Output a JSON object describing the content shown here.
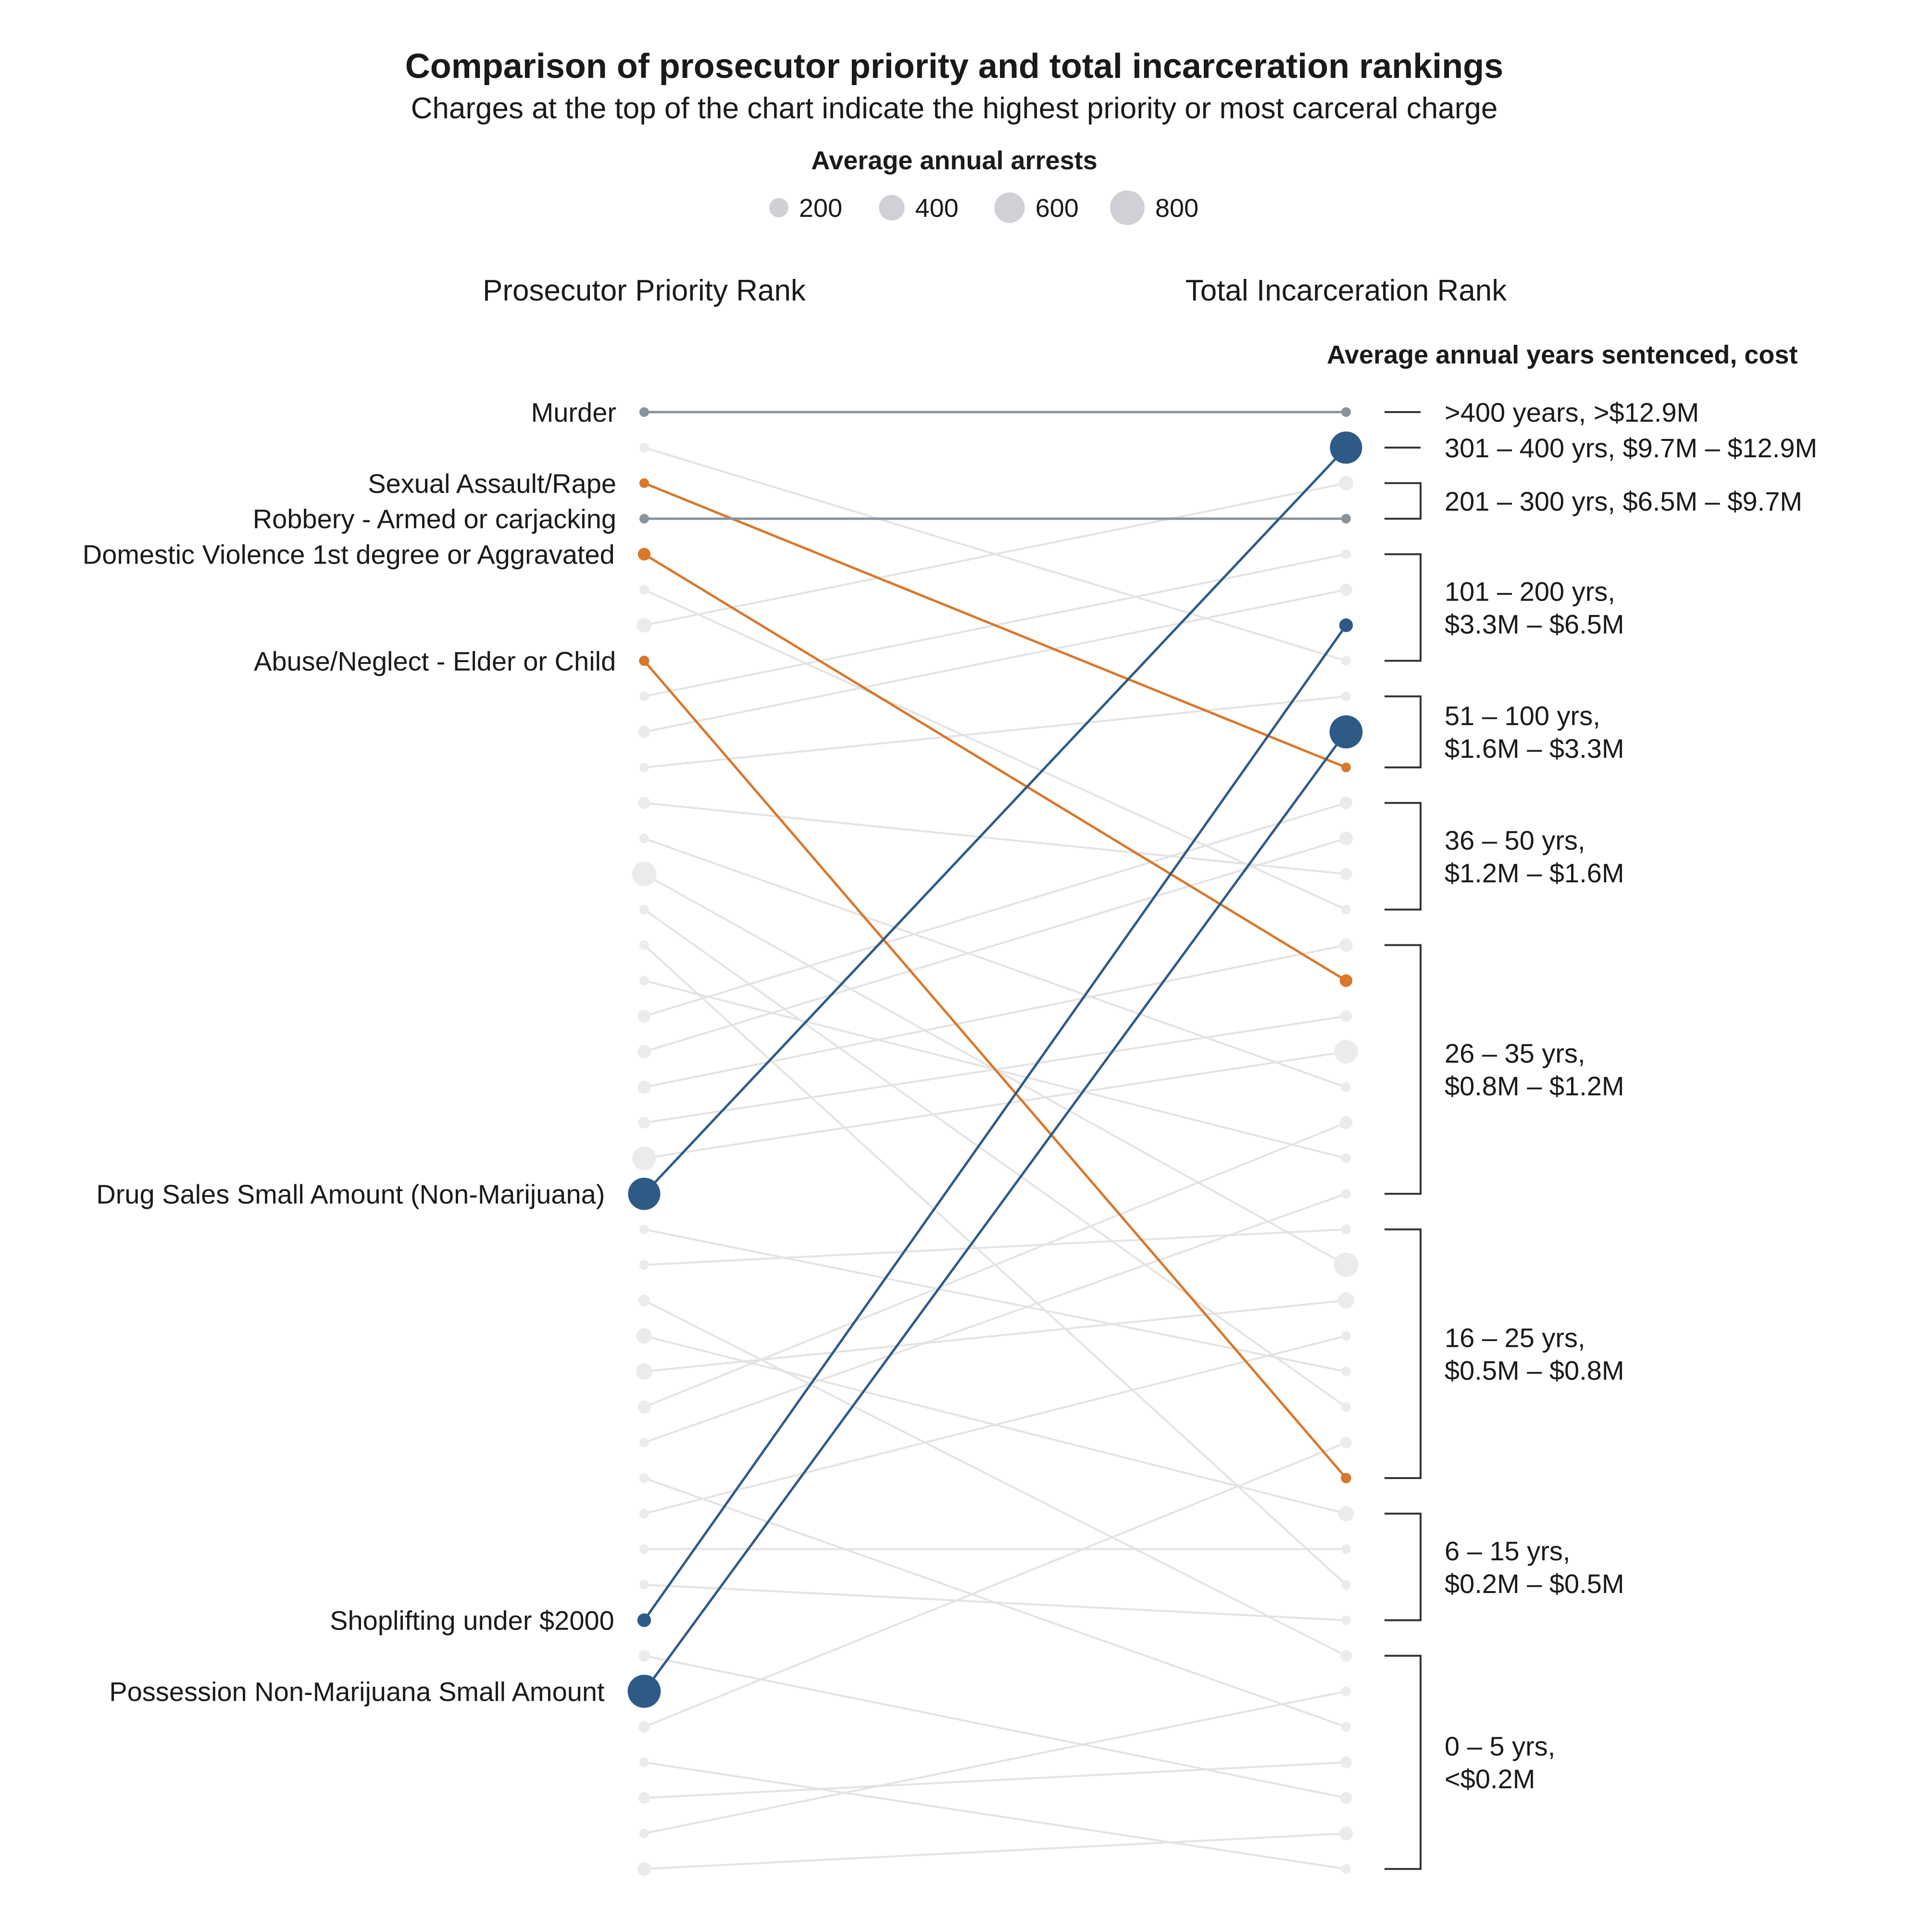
{
  "chart_data": {
    "type": "slope",
    "title": "Comparison of prosecutor priority and total incarceration rankings",
    "subtitle": "Charges at the top of the chart indicate the highest priority or most carceral charge",
    "legend": {
      "title": "Average annual arrests",
      "sizes": [
        {
          "label": "200",
          "value": 200
        },
        {
          "label": "400",
          "value": 400
        },
        {
          "label": "600",
          "value": 600
        },
        {
          "label": "800",
          "value": 800
        }
      ]
    },
    "left_axis_label": "Prosecutor Priority Rank",
    "right_axis_label": "Total Incarceration Rank",
    "bracket_title": "Average annual years sentenced, cost",
    "total_ranks": 42,
    "colors": {
      "highlight_gray": "#8a939c",
      "highlight_orange": "#d9772a",
      "highlight_blue": "#2e5b86",
      "background_line": "#e3e3e3",
      "background_dot": "#ebebeb",
      "bracket": "#333333"
    },
    "highlighted": [
      {
        "name": "Murder",
        "priority_rank": 1,
        "incarceration_rank": 1,
        "arrests": 60,
        "group": "gray"
      },
      {
        "name": "Sexual Assault/Rape",
        "priority_rank": 3,
        "incarceration_rank": 11,
        "arrests": 25,
        "group": "orange"
      },
      {
        "name": "Robbery - Armed or carjacking",
        "priority_rank": 4,
        "incarceration_rank": 4,
        "arrests": 60,
        "group": "gray"
      },
      {
        "name": "Domestic Violence 1st degree or Aggravated",
        "priority_rank": 5,
        "incarceration_rank": 17,
        "arrests": 120,
        "group": "orange"
      },
      {
        "name": "Abuse/Neglect - Elder or Child",
        "priority_rank": 8,
        "incarceration_rank": 31,
        "arrests": 80,
        "group": "orange"
      },
      {
        "name": "Drug Sales Small Amount (Non-Marijuana)",
        "priority_rank": 23,
        "incarceration_rank": 2,
        "arrests": 780,
        "group": "blue"
      },
      {
        "name": "Shoplifting under $2000",
        "priority_rank": 35,
        "incarceration_rank": 7,
        "arrests": 140,
        "group": "blue"
      },
      {
        "name": "Possession Non-Marijuana Small Amount",
        "priority_rank": 37,
        "incarceration_rank": 10,
        "arrests": 820,
        "group": "blue"
      }
    ],
    "background_charges": [
      {
        "priority_rank": 2,
        "incarceration_rank": 8,
        "arrests": 30
      },
      {
        "priority_rank": 6,
        "incarceration_rank": 15,
        "arrests": 30
      },
      {
        "priority_rank": 7,
        "incarceration_rank": 3,
        "arrests": 160
      },
      {
        "priority_rank": 9,
        "incarceration_rank": 5,
        "arrests": 50
      },
      {
        "priority_rank": 10,
        "incarceration_rank": 6,
        "arrests": 110
      },
      {
        "priority_rank": 11,
        "incarceration_rank": 9,
        "arrests": 30
      },
      {
        "priority_rank": 12,
        "incarceration_rank": 14,
        "arrests": 110
      },
      {
        "priority_rank": 13,
        "incarceration_rank": 20,
        "arrests": 30
      },
      {
        "priority_rank": 14,
        "incarceration_rank": 25,
        "arrests": 450
      },
      {
        "priority_rank": 15,
        "incarceration_rank": 29,
        "arrests": 60
      },
      {
        "priority_rank": 16,
        "incarceration_rank": 34,
        "arrests": 30
      },
      {
        "priority_rank": 17,
        "incarceration_rank": 22,
        "arrests": 40
      },
      {
        "priority_rank": 18,
        "incarceration_rank": 12,
        "arrests": 120
      },
      {
        "priority_rank": 19,
        "incarceration_rank": 13,
        "arrests": 140
      },
      {
        "priority_rank": 20,
        "incarceration_rank": 16,
        "arrests": 130
      },
      {
        "priority_rank": 21,
        "incarceration_rank": 18,
        "arrests": 100
      },
      {
        "priority_rank": 22,
        "incarceration_rank": 19,
        "arrests": 420
      },
      {
        "priority_rank": 24,
        "incarceration_rank": 28,
        "arrests": 30
      },
      {
        "priority_rank": 25,
        "incarceration_rank": 24,
        "arrests": 30
      },
      {
        "priority_rank": 26,
        "incarceration_rank": 36,
        "arrests": 100
      },
      {
        "priority_rank": 27,
        "incarceration_rank": 32,
        "arrests": 180
      },
      {
        "priority_rank": 28,
        "incarceration_rank": 26,
        "arrests": 200
      },
      {
        "priority_rank": 29,
        "incarceration_rank": 21,
        "arrests": 130
      },
      {
        "priority_rank": 30,
        "incarceration_rank": 23,
        "arrests": 40
      },
      {
        "priority_rank": 31,
        "incarceration_rank": 38,
        "arrests": 30
      },
      {
        "priority_rank": 32,
        "incarceration_rank": 27,
        "arrests": 30
      },
      {
        "priority_rank": 33,
        "incarceration_rank": 33,
        "arrests": 40
      },
      {
        "priority_rank": 34,
        "incarceration_rank": 35,
        "arrests": 30
      },
      {
        "priority_rank": 36,
        "incarceration_rank": 40,
        "arrests": 100
      },
      {
        "priority_rank": 38,
        "incarceration_rank": 30,
        "arrests": 100
      },
      {
        "priority_rank": 39,
        "incarceration_rank": 42,
        "arrests": 30
      },
      {
        "priority_rank": 40,
        "incarceration_rank": 39,
        "arrests": 100
      },
      {
        "priority_rank": 41,
        "incarceration_rank": 37,
        "arrests": 40
      },
      {
        "priority_rank": 42,
        "incarceration_rank": 41,
        "arrests": 140
      }
    ],
    "brackets": [
      {
        "lines": [
          ">400 years, >$12.9M"
        ],
        "from_rank": 1,
        "to_rank": 1
      },
      {
        "lines": [
          "301 – 400 yrs, $9.7M – $12.9M"
        ],
        "from_rank": 2,
        "to_rank": 2
      },
      {
        "lines": [
          "201 – 300 yrs, $6.5M – $9.7M"
        ],
        "from_rank": 3,
        "to_rank": 4
      },
      {
        "lines": [
          "101 – 200 yrs,",
          "$3.3M – $6.5M"
        ],
        "from_rank": 5,
        "to_rank": 8
      },
      {
        "lines": [
          "51 – 100 yrs,",
          "$1.6M – $3.3M"
        ],
        "from_rank": 9,
        "to_rank": 11
      },
      {
        "lines": [
          "36 – 50 yrs,",
          "$1.2M – $1.6M"
        ],
        "from_rank": 12,
        "to_rank": 15
      },
      {
        "lines": [
          "26 – 35 yrs,",
          "$0.8M – $1.2M"
        ],
        "from_rank": 16,
        "to_rank": 23
      },
      {
        "lines": [
          "16 – 25 yrs,",
          "$0.5M – $0.8M"
        ],
        "from_rank": 24,
        "to_rank": 31
      },
      {
        "lines": [
          "6 – 15 yrs,",
          "$0.2M – $0.5M"
        ],
        "from_rank": 32,
        "to_rank": 35
      },
      {
        "lines": [
          "0 – 5 yrs,",
          "<$0.2M"
        ],
        "from_rank": 36,
        "to_rank": 42
      }
    ]
  }
}
